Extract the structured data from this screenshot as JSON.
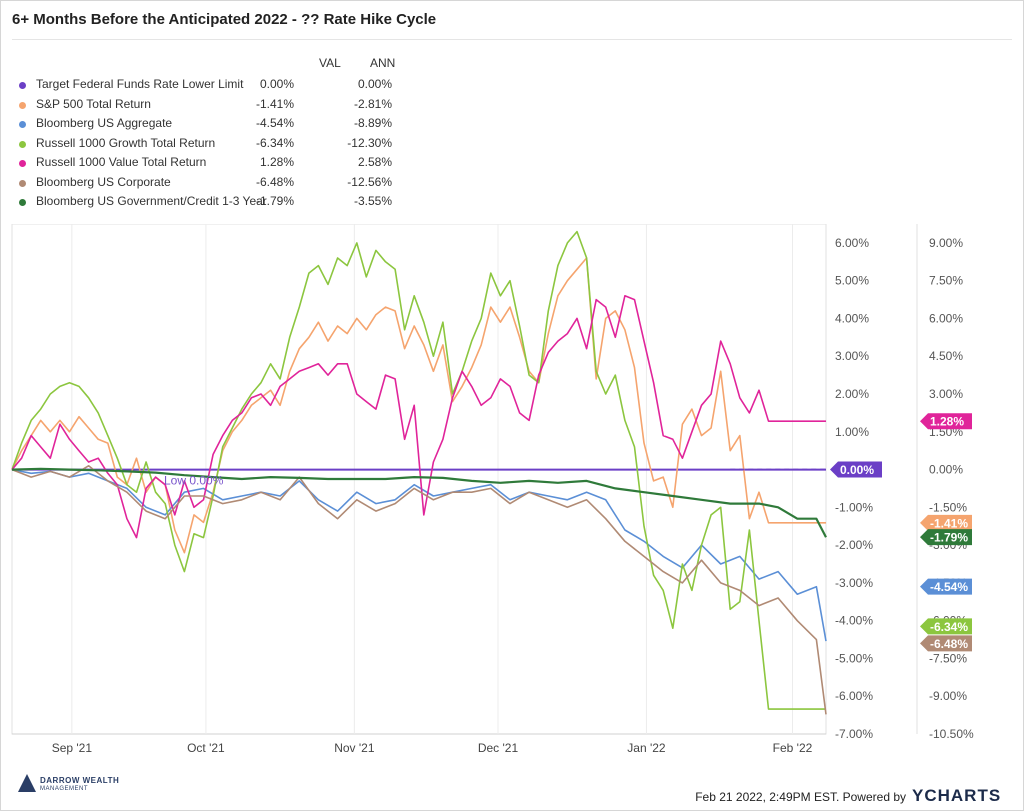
{
  "title": "6+ Months Before the Anticipated 2022 - ?? Rate Hike Cycle",
  "legend": {
    "val_header": "VAL",
    "ann_header": "ANN",
    "rows": [
      {
        "name": "Target Federal Funds Rate Lower Limit",
        "val": "0.00%",
        "ann": "0.00%",
        "color": "#6b3fc6"
      },
      {
        "name": "S&P 500 Total Return",
        "val": "-1.41%",
        "ann": "-2.81%",
        "color": "#f5a46e"
      },
      {
        "name": "Bloomberg US Aggregate",
        "val": "-4.54%",
        "ann": "-8.89%",
        "color": "#5b8fd6"
      },
      {
        "name": "Russell 1000 Growth Total Return",
        "val": "-6.34%",
        "ann": "-12.30%",
        "color": "#8cc63f"
      },
      {
        "name": "Russell 1000 Value Total Return",
        "val": "1.28%",
        "ann": "2.58%",
        "color": "#e0249a"
      },
      {
        "name": "Bloomberg US Corporate",
        "val": "-6.48%",
        "ann": "-12.56%",
        "color": "#b08a74"
      },
      {
        "name": "Bloomberg US Government/Credit 1-3 Year",
        "val": "-1.79%",
        "ann": "-3.55%",
        "color": "#2f7a3a"
      }
    ]
  },
  "footer": {
    "date": "Feb 21 2022, 2:49PM EST.  Powered by",
    "brand_y": "Y",
    "brand_rest": "CHARTS",
    "logo_line1": "DARROW WEALTH",
    "logo_line2": "MANAGEMENT"
  },
  "chart_data": {
    "type": "line",
    "x_labels": [
      "Sep '21",
      "Oct '21",
      "Nov '21",
      "Dec '21",
      "Jan '22",
      "Feb '22"
    ],
    "ylim": [
      -7,
      6.5
    ],
    "y_ticks": [
      "6.00%",
      "5.00%",
      "4.00%",
      "3.00%",
      "2.00%",
      "1.00%",
      "0.00%",
      "-1.00%",
      "-2.00%",
      "-3.00%",
      "-4.00%",
      "-5.00%",
      "-6.00%",
      "-7.00%"
    ],
    "y_tick_values": [
      6,
      5,
      4,
      3,
      2,
      1,
      0,
      -1,
      -2,
      -3,
      -4,
      -5,
      -6,
      -7
    ],
    "y2_ticks": [
      "9.00%",
      "7.50%",
      "6.00%",
      "4.50%",
      "3.00%",
      "1.50%",
      "0.00%",
      "-1.50%",
      "-3.00%",
      "-4.50%",
      "-6.00%",
      "-7.50%",
      "-9.00%",
      "-10.50%"
    ],
    "annotation": "Low 0.00%",
    "end_labels": [
      "1.28%",
      "0.00%",
      "-1.41%",
      "-1.79%",
      "-4.54%",
      "-6.34%",
      "-6.48%"
    ],
    "series": [
      {
        "name": "Target Federal Funds Rate Lower Limit",
        "color": "#6b3fc6",
        "x": [
          0,
          170
        ],
        "y": [
          0,
          0
        ]
      },
      {
        "name": "S&P 500 Total Return",
        "color": "#f5a46e",
        "x": [
          0,
          2,
          4,
          6,
          8,
          10,
          12,
          14,
          16,
          18,
          20,
          22,
          24,
          26,
          28,
          30,
          32,
          34,
          36,
          38,
          40,
          42,
          44,
          46,
          48,
          50,
          52,
          54,
          56,
          58,
          60,
          62,
          64,
          66,
          68,
          70,
          72,
          74,
          76,
          78,
          80,
          82,
          84,
          86,
          88,
          90,
          92,
          94,
          96,
          98,
          100,
          102,
          104,
          106,
          108,
          110,
          112,
          114,
          116,
          118,
          120,
          122,
          124,
          126,
          128,
          130,
          132,
          134,
          136,
          138,
          140,
          142,
          144,
          146,
          148,
          150,
          152,
          154,
          156,
          158,
          160,
          162,
          164,
          166,
          168,
          170
        ],
        "y": [
          0,
          0.5,
          0.9,
          1.3,
          1.0,
          1.3,
          1.0,
          1.4,
          1.1,
          0.8,
          0.7,
          -0.2,
          -0.4,
          0.3,
          -0.6,
          -0.2,
          -0.4,
          -1.6,
          -2.2,
          -1.2,
          -1.4,
          -0.6,
          0.5,
          1.0,
          1.3,
          1.7,
          1.9,
          2.1,
          1.7,
          2.6,
          3.2,
          3.5,
          3.9,
          3.4,
          3.8,
          3.6,
          4.0,
          3.7,
          4.1,
          4.3,
          4.2,
          3.2,
          3.8,
          3.3,
          2.6,
          3.3,
          1.8,
          2.2,
          2.7,
          3.3,
          4.3,
          3.9,
          4.3,
          3.5,
          2.6,
          2.3,
          3.6,
          4.6,
          5.0,
          5.3,
          5.6,
          2.4,
          4.0,
          4.2,
          3.7,
          2.7,
          0.7,
          -0.3,
          -0.2,
          -1.0,
          1.2,
          1.6,
          0.9,
          1.1,
          2.6,
          0.5,
          0.9,
          -1.3,
          -0.6,
          -1.41,
          -1.41,
          -1.41,
          -1.41,
          -1.41,
          -1.41,
          -1.41
        ]
      },
      {
        "name": "Bloomberg US Aggregate",
        "color": "#5b8fd6",
        "x": [
          0,
          4,
          8,
          12,
          16,
          20,
          24,
          28,
          32,
          36,
          40,
          44,
          48,
          52,
          56,
          60,
          64,
          68,
          72,
          76,
          80,
          84,
          88,
          92,
          96,
          100,
          104,
          108,
          112,
          116,
          120,
          124,
          128,
          132,
          136,
          140,
          144,
          148,
          152,
          156,
          160,
          164,
          168,
          170
        ],
        "y": [
          0,
          -0.1,
          -0.05,
          -0.2,
          -0.1,
          -0.3,
          -0.5,
          -1.0,
          -1.2,
          -0.6,
          -0.5,
          -0.8,
          -0.7,
          -0.6,
          -0.7,
          -0.3,
          -0.8,
          -1.1,
          -0.6,
          -0.9,
          -0.8,
          -0.4,
          -0.7,
          -0.6,
          -0.5,
          -0.4,
          -0.8,
          -0.6,
          -0.7,
          -0.8,
          -0.6,
          -0.8,
          -1.6,
          -1.9,
          -2.3,
          -2.6,
          -2.0,
          -2.5,
          -2.3,
          -2.9,
          -2.7,
          -3.3,
          -3.1,
          -4.54
        ]
      },
      {
        "name": "Russell 1000 Growth Total Return",
        "color": "#8cc63f",
        "x": [
          0,
          2,
          4,
          6,
          8,
          10,
          12,
          14,
          16,
          18,
          20,
          22,
          24,
          26,
          28,
          30,
          32,
          34,
          36,
          38,
          40,
          42,
          44,
          46,
          48,
          50,
          52,
          54,
          56,
          58,
          60,
          62,
          64,
          66,
          68,
          70,
          72,
          74,
          76,
          78,
          80,
          82,
          84,
          86,
          88,
          90,
          92,
          94,
          96,
          98,
          100,
          102,
          104,
          106,
          108,
          110,
          112,
          114,
          116,
          118,
          120,
          122,
          124,
          126,
          128,
          130,
          132,
          134,
          136,
          138,
          140,
          142,
          144,
          146,
          148,
          150,
          152,
          154,
          156,
          158,
          160,
          162,
          164,
          166,
          168,
          170
        ],
        "y": [
          0,
          0.7,
          1.3,
          1.6,
          2.0,
          2.2,
          2.3,
          2.2,
          1.9,
          1.5,
          0.9,
          0.3,
          -0.4,
          -0.6,
          0.2,
          -0.6,
          -0.9,
          -2.0,
          -2.7,
          -1.7,
          -1.8,
          -0.7,
          0.6,
          1.1,
          1.6,
          2.0,
          2.3,
          2.8,
          2.4,
          3.5,
          4.3,
          5.2,
          5.4,
          4.9,
          5.6,
          5.4,
          6.0,
          5.1,
          5.8,
          5.5,
          5.3,
          3.7,
          4.6,
          3.9,
          3.0,
          3.9,
          2.0,
          2.6,
          3.4,
          4.0,
          5.2,
          4.6,
          5.0,
          3.8,
          2.5,
          2.3,
          4.2,
          5.4,
          6.0,
          6.3,
          5.6,
          2.6,
          2.0,
          2.5,
          1.3,
          0.6,
          -1.5,
          -2.8,
          -3.2,
          -4.2,
          -2.5,
          -3.2,
          -2.0,
          -1.2,
          -1.0,
          -3.7,
          -3.5,
          -1.6,
          -4.0,
          -6.34,
          -6.34,
          -6.34,
          -6.34,
          -6.34,
          -6.34,
          -6.34
        ]
      },
      {
        "name": "Russell 1000 Value Total Return",
        "color": "#e0249a",
        "x": [
          0,
          2,
          4,
          6,
          8,
          10,
          12,
          14,
          16,
          18,
          20,
          22,
          24,
          26,
          28,
          30,
          32,
          34,
          36,
          38,
          40,
          42,
          44,
          46,
          48,
          50,
          52,
          54,
          56,
          58,
          60,
          62,
          64,
          66,
          68,
          70,
          72,
          74,
          76,
          78,
          80,
          82,
          84,
          86,
          88,
          90,
          92,
          94,
          96,
          98,
          100,
          102,
          104,
          106,
          108,
          110,
          112,
          114,
          116,
          118,
          120,
          122,
          124,
          126,
          128,
          130,
          132,
          134,
          136,
          138,
          140,
          142,
          144,
          146,
          148,
          150,
          152,
          154,
          156,
          158,
          160,
          162,
          164,
          166,
          168,
          170
        ],
        "y": [
          0,
          0.3,
          0.9,
          0.6,
          0.3,
          1.2,
          0.8,
          0.5,
          0.2,
          0.3,
          -0.1,
          -0.4,
          -1.3,
          -1.8,
          -0.5,
          -0.2,
          -0.4,
          -1.2,
          -0.3,
          -1.0,
          -0.8,
          0.4,
          0.9,
          1.3,
          1.5,
          1.9,
          2.0,
          1.7,
          2.2,
          2.4,
          2.6,
          2.7,
          2.8,
          2.5,
          2.8,
          2.8,
          2.0,
          1.8,
          1.6,
          2.5,
          2.4,
          0.8,
          1.7,
          -1.2,
          0.2,
          0.8,
          1.9,
          2.6,
          2.2,
          1.7,
          1.9,
          2.4,
          2.2,
          1.5,
          1.3,
          2.5,
          3.1,
          3.4,
          3.6,
          4.0,
          3.2,
          4.5,
          4.3,
          3.5,
          4.6,
          4.5,
          3.4,
          2.3,
          0.9,
          0.8,
          0.3,
          1.0,
          1.7,
          2.0,
          3.4,
          2.8,
          1.9,
          1.5,
          2.1,
          1.28,
          1.28,
          1.28,
          1.28,
          1.28,
          1.28,
          1.28
        ]
      },
      {
        "name": "Bloomberg US Corporate",
        "color": "#b08a74",
        "x": [
          0,
          4,
          8,
          12,
          16,
          20,
          24,
          28,
          32,
          36,
          40,
          44,
          48,
          52,
          56,
          60,
          64,
          68,
          72,
          76,
          80,
          84,
          88,
          92,
          96,
          100,
          104,
          108,
          112,
          116,
          120,
          124,
          128,
          132,
          136,
          140,
          144,
          148,
          152,
          156,
          160,
          164,
          168,
          170
        ],
        "y": [
          0,
          -0.2,
          -0.05,
          -0.2,
          0.1,
          -0.3,
          -0.6,
          -1.1,
          -1.3,
          -0.7,
          -0.7,
          -0.9,
          -0.8,
          -0.6,
          -0.8,
          -0.2,
          -0.9,
          -1.3,
          -0.8,
          -1.1,
          -0.9,
          -0.5,
          -0.8,
          -0.6,
          -0.6,
          -0.5,
          -0.9,
          -0.6,
          -0.8,
          -1.0,
          -0.8,
          -1.3,
          -1.9,
          -2.3,
          -2.7,
          -3.0,
          -2.4,
          -3.0,
          -3.2,
          -3.6,
          -3.4,
          -4.0,
          -4.5,
          -6.48
        ]
      },
      {
        "name": "Bloomberg US Government/Credit 1-3 Year",
        "color": "#2f7a3a",
        "x": [
          0,
          6,
          12,
          18,
          24,
          30,
          36,
          42,
          48,
          54,
          60,
          66,
          72,
          78,
          84,
          90,
          96,
          102,
          108,
          114,
          120,
          126,
          132,
          138,
          144,
          150,
          156,
          160,
          164,
          168,
          170
        ],
        "y": [
          0,
          0.02,
          0.0,
          -0.02,
          -0.05,
          -0.08,
          -0.15,
          -0.2,
          -0.25,
          -0.2,
          -0.22,
          -0.25,
          -0.25,
          -0.25,
          -0.2,
          -0.22,
          -0.3,
          -0.35,
          -0.3,
          -0.35,
          -0.3,
          -0.5,
          -0.6,
          -0.7,
          -0.8,
          -0.9,
          -0.9,
          -1.0,
          -1.3,
          -1.3,
          -1.79
        ]
      }
    ]
  }
}
